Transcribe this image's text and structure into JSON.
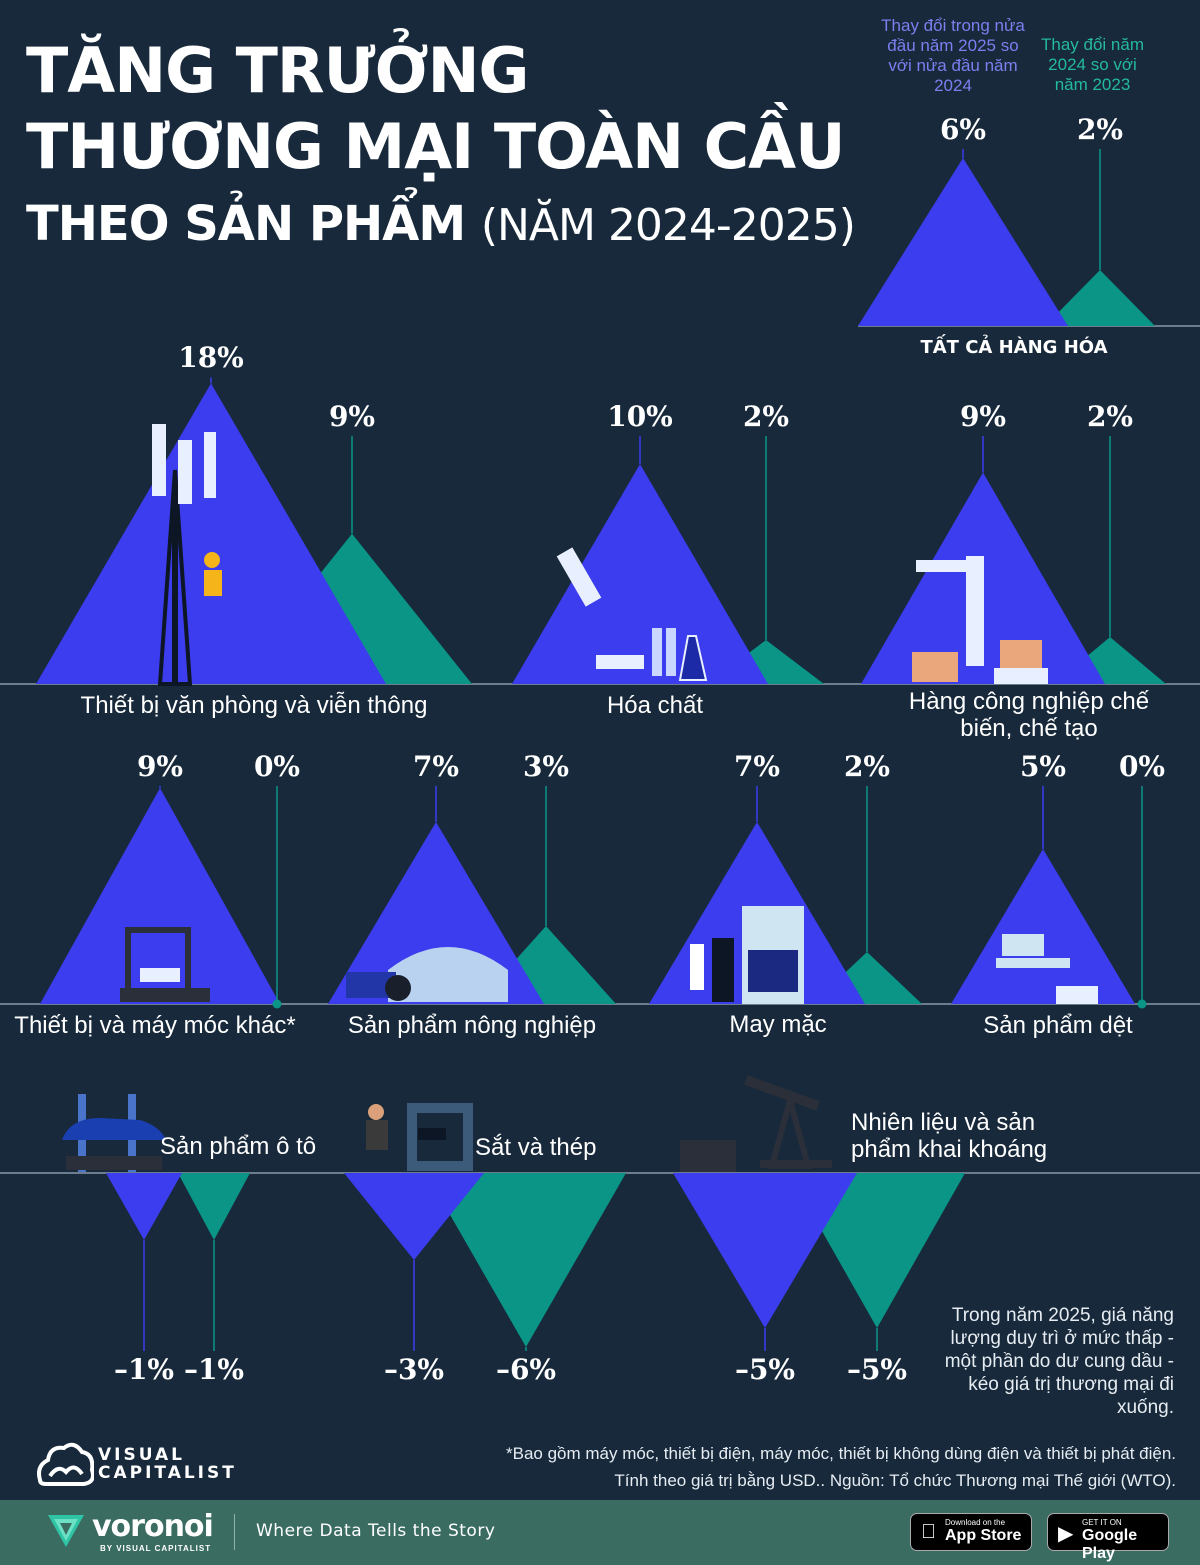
{
  "title": {
    "line1": "TĂNG TRƯỞNG",
    "line2": "THƯƠNG MẠI TOÀN CẦU",
    "line3_bold": "THEO SẢN PHẨM",
    "line3_sub": "(NĂM 2024-2025)"
  },
  "legend": {
    "h1_2025_label": "Thay đổi trong nửa đầu năm 2025 so với nửa đầu năm 2024",
    "y2024_label": "Thay đổi năm 2024 so với năm 2023",
    "h1_color": "#3d3df0",
    "y2024_color": "#0a9587"
  },
  "chart_data": {
    "type": "triangle-bar",
    "unit": "%",
    "series": [
      {
        "name": "Thay đổi trong nửa đầu năm 2025 so với nửa đầu năm 2024",
        "color": "#3d3df0"
      },
      {
        "name": "Thay đổi năm 2024 so với năm 2023",
        "color": "#0a9587"
      }
    ],
    "categories": [
      {
        "name": "TẤT CẢ HÀNG HÓA",
        "h1_2025": 6,
        "y2024": 2,
        "h1_label": "6%",
        "y2024_label": "2%"
      },
      {
        "name": "Thiết bị văn phòng và viễn thông",
        "h1_2025": 18,
        "y2024": 9,
        "h1_label": "18%",
        "y2024_label": "9%"
      },
      {
        "name": "Hóa chất",
        "h1_2025": 10,
        "y2024": 2,
        "h1_label": "10%",
        "y2024_label": "2%"
      },
      {
        "name": "Hàng công nghiệp chế biến, chế tạo",
        "h1_2025": 9,
        "y2024": 2,
        "h1_label": "9%",
        "y2024_label": "2%"
      },
      {
        "name": "Thiết bị và máy móc khác*",
        "h1_2025": 9,
        "y2024": 0,
        "h1_label": "9%",
        "y2024_label": "0%"
      },
      {
        "name": "Sản phẩm nông nghiệp",
        "h1_2025": 7,
        "y2024": 3,
        "h1_label": "7%",
        "y2024_label": "3%"
      },
      {
        "name": "May mặc",
        "h1_2025": 7,
        "y2024": 2,
        "h1_label": "7%",
        "y2024_label": "2%"
      },
      {
        "name": "Sản phẩm dệt",
        "h1_2025": 5,
        "y2024": 0,
        "h1_label": "5%",
        "y2024_label": "0%"
      },
      {
        "name": "Sản phẩm ô tô",
        "h1_2025": -1,
        "y2024": -1,
        "h1_label": "–1%",
        "y2024_label": "–1%"
      },
      {
        "name": "Sắt và thép",
        "h1_2025": -3,
        "y2024": -6,
        "h1_label": "–3%",
        "y2024_label": "–6%"
      },
      {
        "name": "Nhiên liệu và sản phẩm khai khoáng",
        "h1_2025": -5,
        "y2024": -5,
        "h1_label": "–5%",
        "y2024_label": "–5%"
      }
    ]
  },
  "note": "Trong năm 2025, giá năng lượng duy trì ở mức thấp - một phần do dư cung dầu - kéo giá trị thương mại đi xuống.",
  "footnote": "*Bao gồm máy móc, thiết bị điện, máy móc, thiết bị không dùng điện và thiết bị phát điện.",
  "source": "Tính theo giá trị bằng USD.. Nguồn: Tổ chức Thương mại Thế giới (WTO).",
  "brand": {
    "vc_line1": "VISUAL",
    "vc_line2": "CAPITALIST",
    "voronoi": "voronoi",
    "voronoi_by": "BY VISUAL CAPITALIST",
    "tagline": "Where Data Tells the Story",
    "appstore_small": "Download on the",
    "appstore_big": "App Store",
    "googleplay_small": "GET IT ON",
    "googleplay_big": "Google Play"
  }
}
